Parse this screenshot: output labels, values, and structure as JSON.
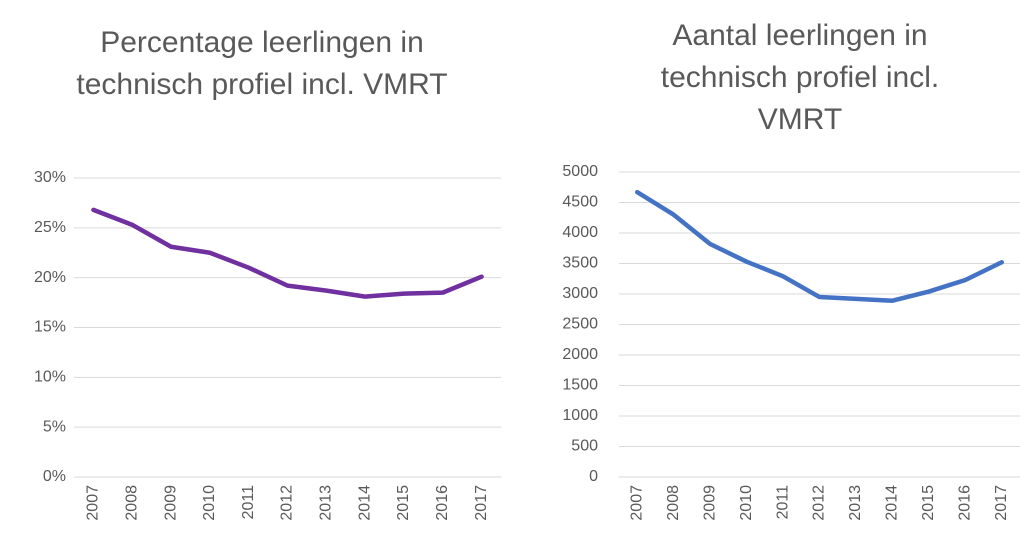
{
  "chart_data": [
    {
      "type": "line",
      "title": "Percentage leerlingen in technisch profiel incl. VMRT",
      "categories": [
        "2007",
        "2008",
        "2009",
        "2010",
        "2011",
        "2012",
        "2013",
        "2014",
        "2015",
        "2016",
        "2017"
      ],
      "series": [
        {
          "name": "Percentage",
          "color": "#7030a0",
          "values": [
            26.8,
            25.3,
            23.1,
            22.5,
            21.0,
            19.2,
            18.7,
            18.1,
            18.4,
            18.5,
            20.1
          ]
        }
      ],
      "ylim": [
        0,
        30
      ],
      "yticks": [
        {
          "value": 0,
          "label": "0%"
        },
        {
          "value": 5,
          "label": "5%"
        },
        {
          "value": 10,
          "label": "10%"
        },
        {
          "value": 15,
          "label": "15%"
        },
        {
          "value": 20,
          "label": "20%"
        },
        {
          "value": 25,
          "label": "25%"
        },
        {
          "value": 30,
          "label": "30%"
        }
      ],
      "grid": true
    },
    {
      "type": "line",
      "title": "Aantal leerlingen in technisch profiel incl. VMRT",
      "categories": [
        "2007",
        "2008",
        "2009",
        "2010",
        "2011",
        "2012",
        "2013",
        "2014",
        "2015",
        "2016",
        "2017"
      ],
      "series": [
        {
          "name": "Aantal",
          "color": "#4472c4",
          "values": [
            4670,
            4300,
            3820,
            3530,
            3290,
            2950,
            2920,
            2890,
            3040,
            3230,
            3520
          ]
        }
      ],
      "ylim": [
        0,
        5000
      ],
      "yticks": [
        0,
        500,
        1000,
        1500,
        2000,
        2500,
        3000,
        3500,
        4000,
        4500,
        5000
      ],
      "grid": true
    }
  ]
}
